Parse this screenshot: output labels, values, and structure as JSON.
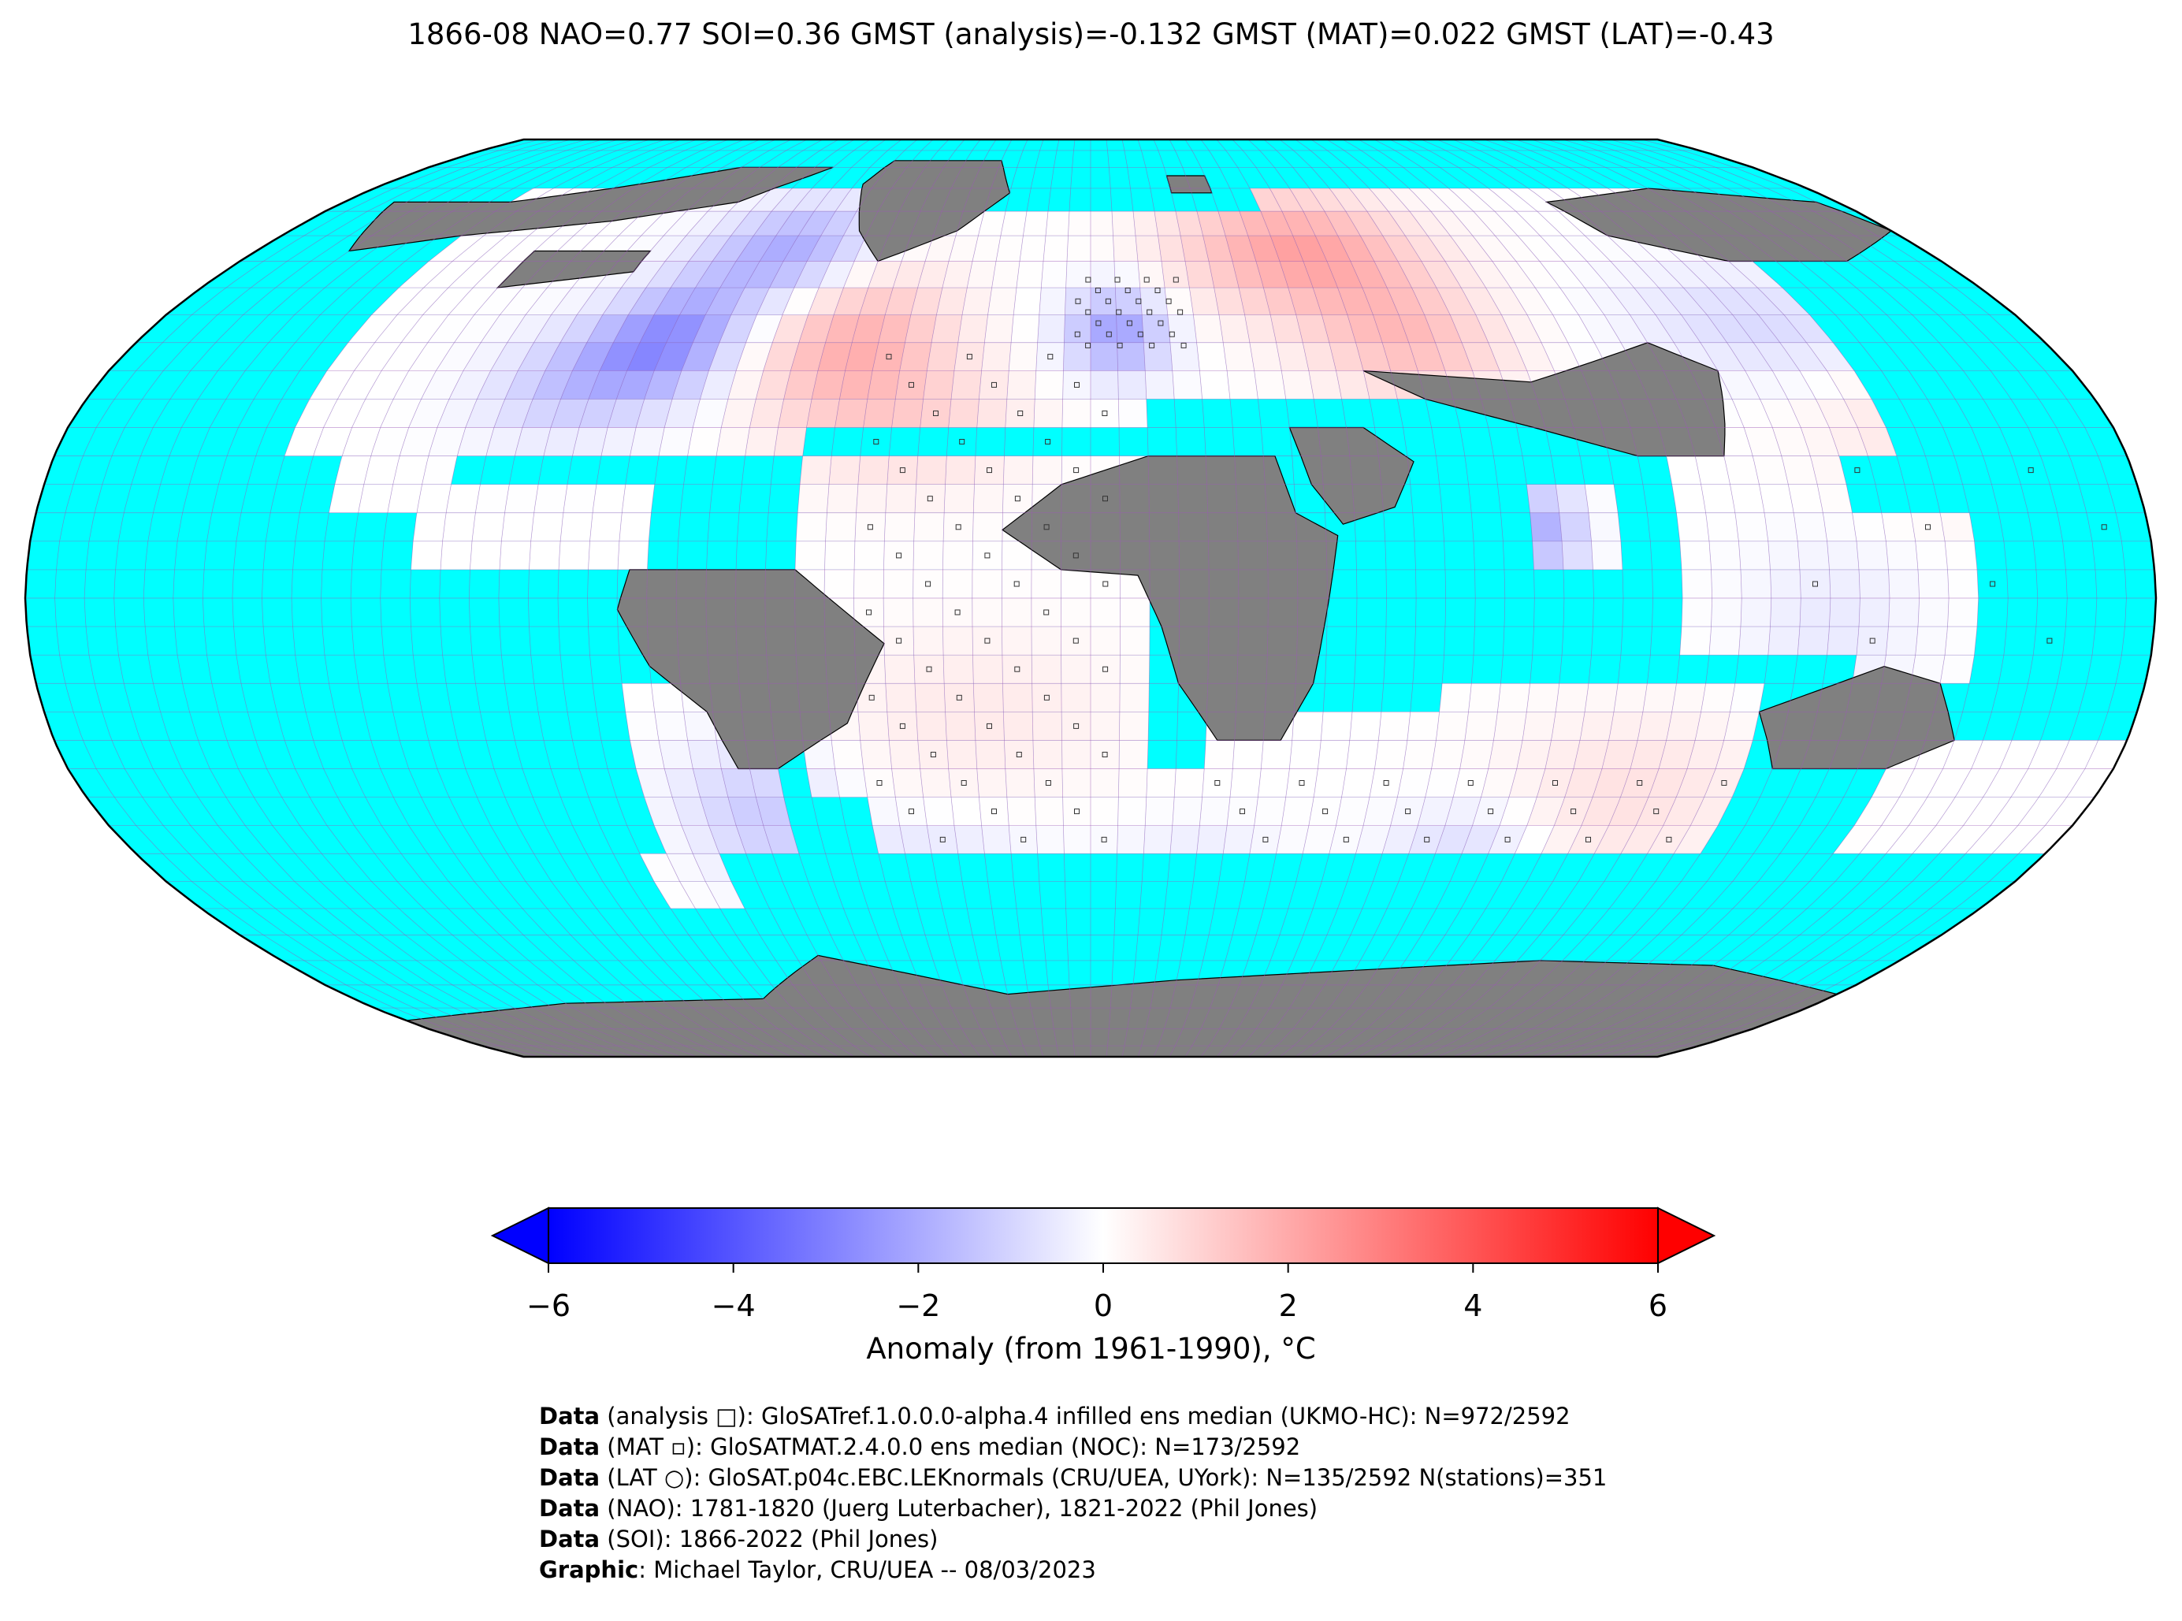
{
  "title": "1866-08 NAO=0.77 SOI=0.36 GMST (analysis)=-0.132 GMST (MAT)=0.022 GMST (LAT)=-0.43",
  "colors": {
    "ocean_no_data": "#00ffff",
    "land_no_data": "#808080",
    "cold": "#0000ff",
    "neutral": "#ffffff",
    "warm": "#ff0000",
    "grid": "#9b59b6",
    "coast": "#000000"
  },
  "colorbar": {
    "ticks": [
      "−6",
      "−4",
      "−2",
      "0",
      "2",
      "4",
      "6"
    ],
    "tick_values": [
      -6,
      -4,
      -2,
      0,
      2,
      4,
      6
    ],
    "range": [
      -6,
      6
    ],
    "extend": "both",
    "label": "Anomaly (from 1961-1990), °C"
  },
  "credits": [
    {
      "bold": "Data",
      "rest": " (analysis □): GloSATref.1.0.0.0-alpha.4 infilled ens median (UKMO-HC): N=972/2592"
    },
    {
      "bold": "Data",
      "rest": " (MAT ▫): GloSATMAT.2.4.0.0 ens median (NOC): N=173/2592"
    },
    {
      "bold": "Data",
      "rest": " (LAT ○): GloSAT.p04c.EBC.LEKnormals (CRU/UEA, UYork): N=135/2592 N(stations)=351"
    },
    {
      "bold": "Data",
      "rest": " (NAO): 1781-1820 (Juerg Luterbacher), 1821-2022 (Phil Jones)"
    },
    {
      "bold": "Data",
      "rest": " (SOI): 1866-2022 (Phil Jones)"
    },
    {
      "bold": "Graphic",
      "rest": ": Michael Taylor, CRU/UEA -- 08/03/2023"
    }
  ]
}
